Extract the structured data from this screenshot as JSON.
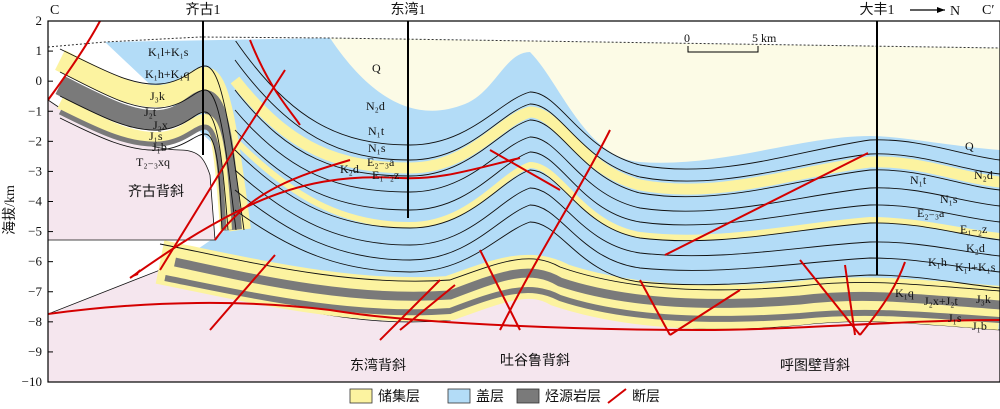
{
  "section": {
    "start": "C",
    "end": "C′",
    "north": "N"
  },
  "axis": {
    "ylabel": "海拔/km",
    "ticks": [
      2,
      1,
      0,
      -1,
      -2,
      -3,
      -4,
      -5,
      -6,
      -7,
      -8,
      -9,
      -10
    ]
  },
  "wells": [
    {
      "name": "齐古1"
    },
    {
      "name": "东湾1"
    },
    {
      "name": "大丰1"
    }
  ],
  "scale": {
    "zero": "0",
    "five": "5 km"
  },
  "strata_left": [
    "K₁l+K₁s",
    "K₁h+K₁q",
    "J₃k",
    "J₂t",
    "J₂x",
    "J₁s",
    "J₁b",
    "T₂₋₃xq"
  ],
  "strata_center": [
    "Q",
    "N₂d",
    "N₁t",
    "N₁s",
    "E₂₋₃a",
    "E₁₋₂z",
    "K₂d"
  ],
  "strata_right": [
    "Q",
    "N₂d",
    "N₁t",
    "N₁s",
    "E₂₋₃a",
    "E₁₋₂z",
    "K₂d",
    "K₁h",
    "K₁l+K₁s",
    "K₁q",
    "J₂x+J₂t",
    "J₃k",
    "J₁s",
    "J₁b"
  ],
  "structures": [
    "齐古背斜",
    "东湾背斜",
    "吐谷鲁背斜",
    "呼图壁背斜"
  ],
  "legend": [
    {
      "label": "储集层",
      "color": "#fcf3a0"
    },
    {
      "label": "盖层",
      "color": "#b3dcf7"
    },
    {
      "label": "烃源岩层",
      "color": "#7a7a7a"
    },
    {
      "label": "断层",
      "color": "#d40000"
    }
  ]
}
